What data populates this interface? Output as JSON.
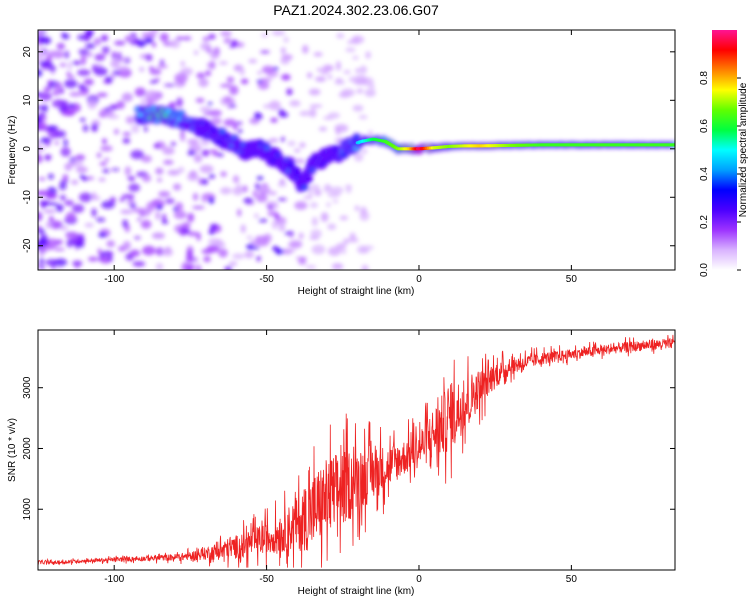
{
  "title": "PAZ1.2024.302.23.06.G07",
  "chart_data": [
    {
      "type": "heatmap",
      "xlabel": "Height of straight line (km)",
      "ylabel": "Frequency (Hz)",
      "xlim": [
        -125,
        84
      ],
      "ylim": [
        -25,
        24.5
      ],
      "xticks": [
        -100,
        -50,
        0,
        50
      ],
      "xtick_labels": [
        "-100",
        "-50",
        "0",
        "50"
      ],
      "yticks": [
        -20,
        -10,
        0,
        10,
        20
      ],
      "ytick_labels": [
        "-20",
        "-10",
        "0",
        "10",
        "20"
      ],
      "ridge": {
        "x": [
          -92,
          -85,
          -78,
          -72,
          -67,
          -62,
          -57,
          -52,
          -47,
          -42,
          -38,
          -35,
          -31,
          -27,
          -23,
          -19,
          -15,
          -11,
          -7,
          -3,
          0,
          5,
          10,
          15,
          20,
          30,
          40,
          60,
          84
        ],
        "y": [
          7,
          7,
          6,
          4.5,
          3,
          1.5,
          -0.5,
          0,
          -2,
          -4,
          -8,
          -3,
          -2,
          -1,
          0.5,
          1.5,
          2,
          1.5,
          0,
          0,
          0,
          0.2,
          0.5,
          0.6,
          0.6,
          0.7,
          0.8,
          0.8,
          0.8
        ],
        "amplitude": [
          0.45,
          0.55,
          0.4,
          0.3,
          0.3,
          0.35,
          0.3,
          0.3,
          0.3,
          0.3,
          0.3,
          0.3,
          0.3,
          0.3,
          0.35,
          0.4,
          0.5,
          0.55,
          0.6,
          0.7,
          0.9,
          0.65,
          0.6,
          0.65,
          0.7,
          0.6,
          0.55,
          0.55,
          0.55
        ]
      },
      "colorbar": {
        "label": "Normalized spectral amplitude",
        "range": [
          0,
          1
        ],
        "ticks": [
          0.0,
          0.2,
          0.4,
          0.6,
          0.8
        ],
        "tick_labels": [
          "0.0",
          "0.2",
          "0.4",
          "0.6",
          "0.8"
        ],
        "colors": [
          "#ffffff",
          "#d9b3ff",
          "#9d33ff",
          "#4b00ff",
          "#0000ff",
          "#00a0ff",
          "#00ffff",
          "#00ff40",
          "#60ff00",
          "#ffff00",
          "#ff8000",
          "#ff0000",
          "#ff1493"
        ]
      }
    },
    {
      "type": "line",
      "xlabel": "Height of straight line (km)",
      "ylabel": "SNR (10 * v/v)",
      "xlim": [
        -125,
        84
      ],
      "ylim": [
        0,
        3950
      ],
      "xticks": [
        -100,
        -50,
        0,
        50
      ],
      "xtick_labels": [
        "-100",
        "-50",
        "0",
        "50"
      ],
      "yticks": [
        1000,
        2000,
        3000
      ],
      "ytick_labels": [
        "1000",
        "2000",
        "3000"
      ],
      "series": [
        {
          "color": "#ee2222",
          "x": [
            -125,
            -120,
            -110,
            -100,
            -90,
            -80,
            -75,
            -70,
            -65,
            -60,
            -55,
            -50,
            -45,
            -40,
            -35,
            -30,
            -25,
            -20,
            -15,
            -10,
            -5,
            0,
            5,
            10,
            15,
            20,
            25,
            30,
            40,
            50,
            60,
            70,
            80,
            84
          ],
          "y": [
            130,
            120,
            150,
            170,
            190,
            210,
            230,
            270,
            320,
            380,
            450,
            520,
            620,
            760,
            950,
            1200,
            1350,
            1500,
            1600,
            1700,
            1850,
            2000,
            2250,
            2500,
            2750,
            3000,
            3200,
            3350,
            3480,
            3550,
            3620,
            3680,
            3720,
            3730
          ],
          "noise": [
            40,
            40,
            40,
            50,
            60,
            80,
            100,
            150,
            220,
            280,
            320,
            380,
            450,
            650,
            900,
            950,
            900,
            750,
            650,
            500,
            420,
            450,
            650,
            800,
            650,
            450,
            300,
            200,
            150,
            120,
            120,
            120,
            120,
            120
          ]
        }
      ]
    }
  ]
}
